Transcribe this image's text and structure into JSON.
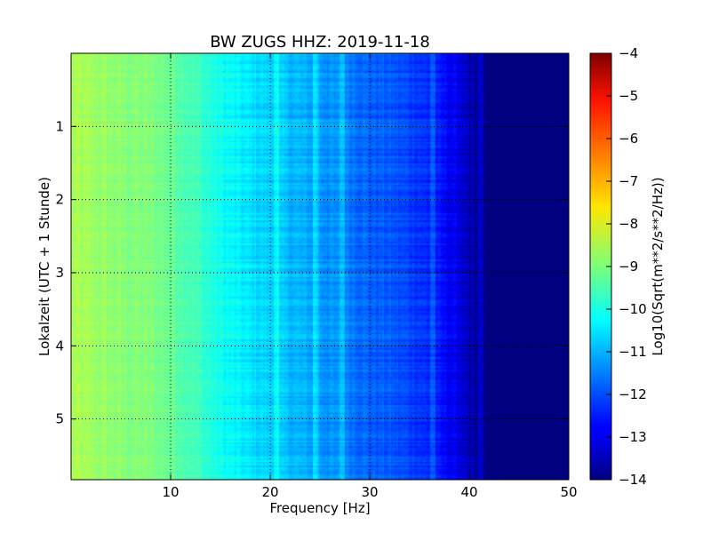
{
  "chart_data": {
    "type": "heatmap",
    "title": "BW ZUGS HHZ: 2019-11-18",
    "xlabel": "Frequency [Hz]",
    "ylabel": "Lokalzeit (UTC + 1 Stunde)",
    "xlim": [
      0,
      50
    ],
    "ylim": [
      5.83,
      0
    ],
    "x_ticks": [
      "10",
      "20",
      "30",
      "40",
      "50"
    ],
    "y_ticks": [
      "1",
      "2",
      "3",
      "4",
      "5"
    ],
    "grid": true,
    "colormap": "jet",
    "colorbar": {
      "label": "Log10(Sqrt(m**2/s**2/Hz))",
      "range": [
        -14,
        -4
      ],
      "ticks": [
        "−4",
        "−5",
        "−6",
        "−7",
        "−8",
        "−9",
        "−10",
        "−11",
        "−12",
        "−13",
        "−14"
      ]
    },
    "spectrum_profile": {
      "frequency_hz": [
        0,
        2,
        5,
        8,
        10,
        12,
        15,
        18,
        20,
        22,
        25,
        28,
        30,
        32,
        35,
        37,
        39,
        40,
        41,
        45,
        50
      ],
      "log10_amplitude": [
        -8.6,
        -8.7,
        -8.9,
        -9.0,
        -9.2,
        -9.5,
        -10.1,
        -10.5,
        -10.7,
        -10.9,
        -11.2,
        -11.5,
        -11.8,
        -11.9,
        -12.2,
        -12.6,
        -13.0,
        -13.5,
        -13.9,
        -13.97,
        -14.0
      ]
    },
    "line_features_hz": [
      20.6,
      24.5,
      27.3,
      36.3,
      41.2
    ]
  }
}
